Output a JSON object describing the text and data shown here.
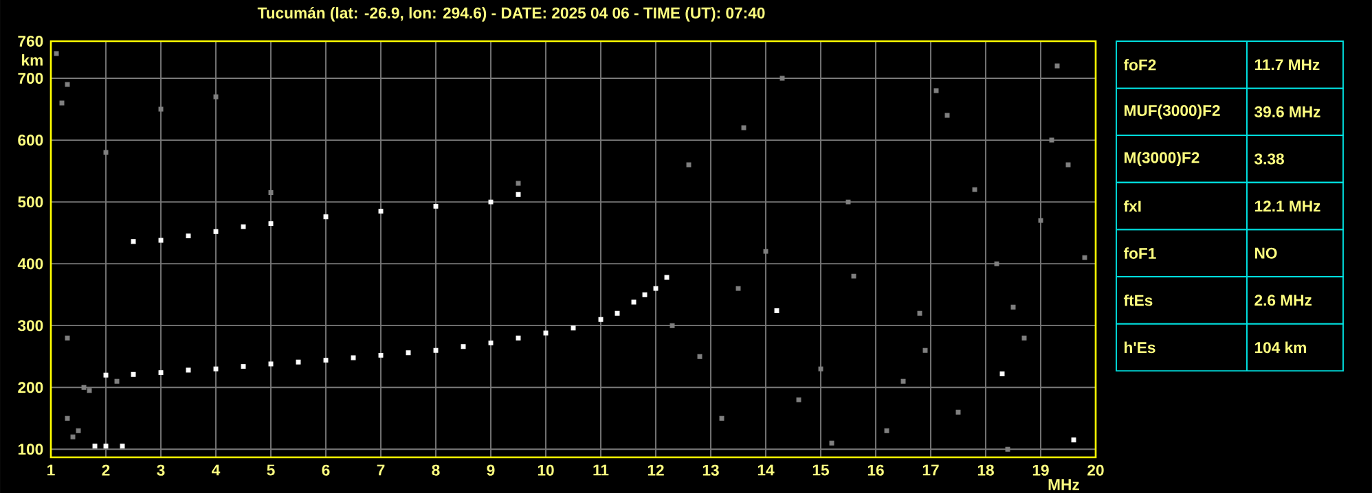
{
  "chart_data": {
    "type": "scatter",
    "title": "Tucumán (lat: -26.9, lon: 294.6) - DATE: 2025 04 06 - TIME (UT): 07:40",
    "xlabel": "MHz",
    "ylabel": "km",
    "xlim": [
      1,
      20
    ],
    "xticks": [
      1,
      2,
      3,
      4,
      5,
      6,
      7,
      8,
      9,
      10,
      11,
      12,
      13,
      14,
      15,
      16,
      17,
      18,
      19,
      20
    ],
    "ylim": [
      87,
      760
    ],
    "yticks": [
      100,
      200,
      300,
      400,
      500,
      600,
      700,
      760
    ],
    "grid": true,
    "marker": "square",
    "series": [
      {
        "color": "#ffffff",
        "x": [
          1.8,
          2.0,
          2.3,
          2.0,
          2.5,
          3.0,
          3.5,
          4.0,
          4.5,
          5.0,
          5.5,
          6.0,
          6.5,
          7.0,
          7.5,
          8.0,
          8.5,
          9.0,
          9.5,
          10.0,
          10.5,
          11.0,
          11.3,
          11.6,
          11.8,
          12.0,
          12.2,
          2.5,
          3.0,
          3.5,
          4.0,
          4.5,
          5.0,
          6.0,
          7.0,
          8.0,
          9.0,
          9.5,
          14.2,
          18.3,
          19.6
        ],
        "values": [
          105,
          105,
          105,
          220,
          221,
          224,
          228,
          230,
          234,
          238,
          241,
          244,
          248,
          252,
          256,
          260,
          266,
          272,
          280,
          288,
          296,
          310,
          320,
          338,
          350,
          360,
          378,
          436,
          438,
          445,
          452,
          460,
          465,
          476,
          485,
          493,
          500,
          512,
          324,
          222,
          115
        ]
      },
      {
        "color": "#808080",
        "x": [
          1.1,
          1.3,
          1.2,
          1.3,
          1.6,
          2.0,
          3.0,
          4.0,
          5.0,
          9.5,
          1.4,
          1.5,
          1.3,
          1.7,
          2.2,
          12.3,
          12.8,
          13.5,
          14.0,
          14.6,
          15.0,
          15.5,
          16.2,
          16.8,
          17.3,
          17.8,
          18.2,
          18.7,
          19.2,
          19.5,
          13.2,
          14.3,
          15.6,
          16.5,
          17.5,
          18.5,
          19.0,
          13.6,
          15.2,
          16.9,
          19.8,
          19.3,
          18.4,
          17.1,
          12.6
        ],
        "values": [
          740,
          690,
          660,
          150,
          200,
          580,
          650,
          670,
          515,
          530,
          120,
          130,
          280,
          195,
          210,
          300,
          250,
          360,
          420,
          180,
          230,
          500,
          130,
          320,
          640,
          520,
          400,
          280,
          600,
          560,
          150,
          700,
          380,
          210,
          160,
          330,
          470,
          620,
          110,
          260,
          410,
          720,
          100,
          680,
          560
        ]
      }
    ],
    "annotations": [
      "foF2",
      "11.7 MHz",
      "MUF(3000)F2",
      "39.6 MHz",
      "M(3000)F2",
      "3.38",
      "fxI",
      "12.1 MHz",
      "foF1",
      "NO",
      "ftEs",
      "2.6 MHz",
      "h'Es",
      "104 km"
    ]
  }
}
